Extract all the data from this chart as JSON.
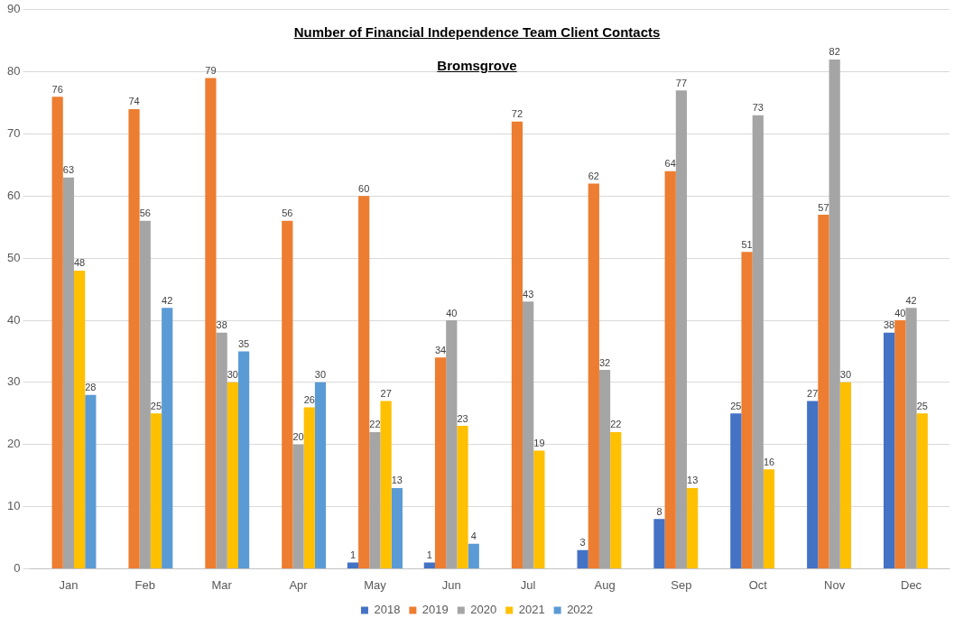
{
  "chart_data": {
    "type": "bar",
    "title": "Number of Financial Independence Team Client Contacts",
    "subtitle": "Bromsgrove",
    "categories": [
      "Jan",
      "Feb",
      "Mar",
      "Apr",
      "May",
      "Jun",
      "Jul",
      "Aug",
      "Sep",
      "Oct",
      "Nov",
      "Dec"
    ],
    "series": [
      {
        "name": "2018",
        "color": "#4472c4",
        "values": [
          null,
          null,
          null,
          null,
          1,
          1,
          null,
          3,
          8,
          25,
          27,
          38
        ]
      },
      {
        "name": "2019",
        "color": "#ed7d31",
        "values": [
          76,
          74,
          79,
          56,
          60,
          34,
          72,
          62,
          64,
          51,
          57,
          40
        ]
      },
      {
        "name": "2020",
        "color": "#a5a5a5",
        "values": [
          63,
          56,
          38,
          20,
          22,
          40,
          43,
          32,
          77,
          73,
          82,
          42
        ]
      },
      {
        "name": "2021",
        "color": "#ffc000",
        "values": [
          48,
          25,
          30,
          26,
          27,
          23,
          19,
          22,
          13,
          16,
          30,
          25
        ]
      },
      {
        "name": "2022",
        "color": "#5b9bd5",
        "values": [
          28,
          42,
          35,
          30,
          13,
          4,
          null,
          null,
          null,
          null,
          null,
          null
        ]
      }
    ],
    "ylim": [
      0,
      90
    ],
    "yticks": [
      0,
      10,
      20,
      30,
      40,
      50,
      60,
      70,
      80,
      90
    ],
    "grid": "y",
    "legend": "bottom",
    "data_labels": true
  }
}
